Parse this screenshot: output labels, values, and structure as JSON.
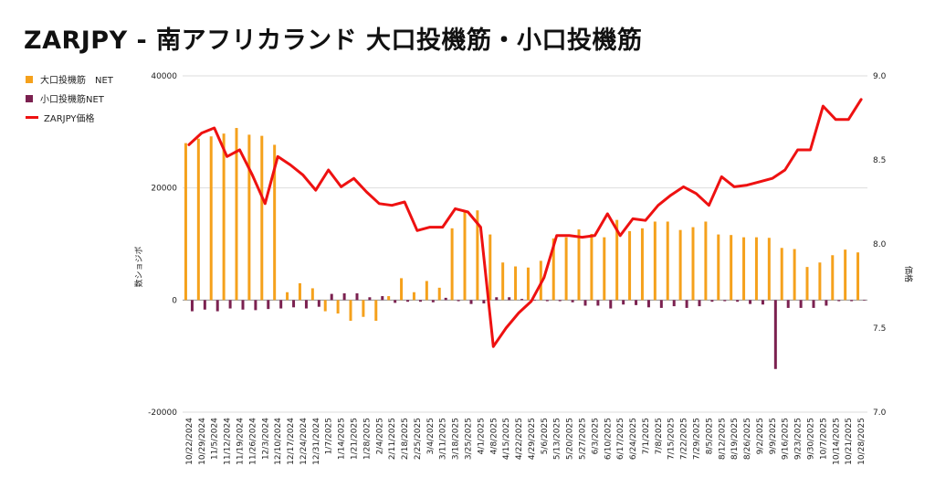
{
  "title": "ZARJPY - 南アフリカランド 大口投機筋・小口投機筋",
  "colors": {
    "large": "#F5A11C",
    "small": "#7B2150",
    "price": "#EE1111",
    "grid": "#DDDDDD"
  },
  "chart_data": {
    "type": "bar+line",
    "title": "ZARJPY - 南アフリカランド 大口投機筋・小口投機筋",
    "categories": [
      "10/22/2024",
      "10/29/2024",
      "11/5/2024",
      "11/12/2024",
      "11/19/2024",
      "11/26/2024",
      "12/3/2024",
      "12/10/2024",
      "12/17/2024",
      "12/24/2024",
      "12/31/2024",
      "1/7/2025",
      "1/14/2025",
      "1/21/2025",
      "1/28/2025",
      "2/4/2025",
      "2/11/2025",
      "2/18/2025",
      "2/25/2025",
      "3/4/2025",
      "3/11/2025",
      "3/18/2025",
      "3/25/2025",
      "4/1/2025",
      "4/8/2025",
      "4/15/2025",
      "4/22/2025",
      "4/29/2025",
      "5/6/2025",
      "5/13/2025",
      "5/20/2025",
      "5/27/2025",
      "6/3/2025",
      "6/10/2025",
      "6/17/2025",
      "6/24/2025",
      "7/1/2025",
      "7/8/2025",
      "7/15/2025",
      "7/22/2025",
      "7/29/2025",
      "8/5/2025",
      "8/12/2025",
      "8/19/2025",
      "8/26/2025",
      "9/2/2025",
      "9/9/2025",
      "9/16/2025",
      "9/23/2025",
      "9/30/2025",
      "10/7/2025",
      "10/14/2025",
      "10/21/2025",
      "10/28/2025"
    ],
    "series": [
      {
        "name": "大口投機筋　NET",
        "type": "bar",
        "axis": "left",
        "values": [
          28000,
          28800,
          29200,
          29700,
          30700,
          29500,
          29300,
          27700,
          1400,
          3000,
          2100,
          -2000,
          -2400,
          -3700,
          -3000,
          -3700,
          700,
          3900,
          1400,
          3400,
          2200,
          12800,
          16000,
          16000,
          11700,
          6700,
          6000,
          5800,
          7000,
          11000,
          11200,
          12600,
          11800,
          11200,
          14300,
          12300,
          12800,
          14000,
          14000,
          12500,
          13000,
          14000,
          11700,
          11600,
          11200,
          11200,
          11100,
          9300,
          9100,
          5900,
          6700,
          8000,
          9000,
          8500
        ]
      },
      {
        "name": "小口投機筋NET",
        "type": "bar",
        "axis": "left",
        "values": [
          -2000,
          -1700,
          -2000,
          -1500,
          -1700,
          -1800,
          -1600,
          -1500,
          -1300,
          -1500,
          -1200,
          1100,
          1200,
          1200,
          500,
          700,
          -500,
          -300,
          -300,
          -400,
          400,
          -200,
          -700,
          -600,
          500,
          500,
          200,
          -100,
          -200,
          -200,
          -400,
          -1000,
          -1000,
          -1500,
          -800,
          -900,
          -1300,
          -1400,
          -1100,
          -1400,
          -1100,
          -300,
          -200,
          -300,
          -700,
          -800,
          -12300,
          -1400,
          -1400,
          -1400,
          -1000,
          -200,
          -200,
          -100
        ]
      },
      {
        "name": "ZARJPY価格",
        "type": "line",
        "axis": "right",
        "values": [
          8.59,
          8.66,
          8.69,
          8.52,
          8.56,
          8.41,
          8.24,
          8.52,
          8.47,
          8.41,
          8.32,
          8.44,
          8.34,
          8.39,
          8.31,
          8.24,
          8.23,
          8.25,
          8.08,
          8.1,
          8.1,
          8.21,
          8.19,
          8.1,
          7.39,
          7.5,
          7.59,
          7.66,
          7.8,
          8.05,
          8.05,
          8.04,
          8.05,
          8.18,
          8.05,
          8.15,
          8.14,
          8.23,
          8.29,
          8.34,
          8.3,
          8.23,
          8.4,
          8.34,
          8.35,
          8.37,
          8.39,
          8.44,
          8.56,
          8.56,
          8.82,
          8.74,
          8.74,
          8.86
        ]
      }
    ],
    "left_axis": {
      "label": "数ショジボ",
      "ylim": [
        -20000,
        40000
      ],
      "ticks": [
        -20000,
        0,
        20000,
        40000
      ]
    },
    "right_axis": {
      "label": "価格",
      "ylim": [
        7.0,
        9.0
      ],
      "ticks": [
        7.0,
        7.5,
        8.0,
        8.5,
        9.0
      ]
    },
    "grid": "horizontal",
    "legend_position": "top-left"
  }
}
